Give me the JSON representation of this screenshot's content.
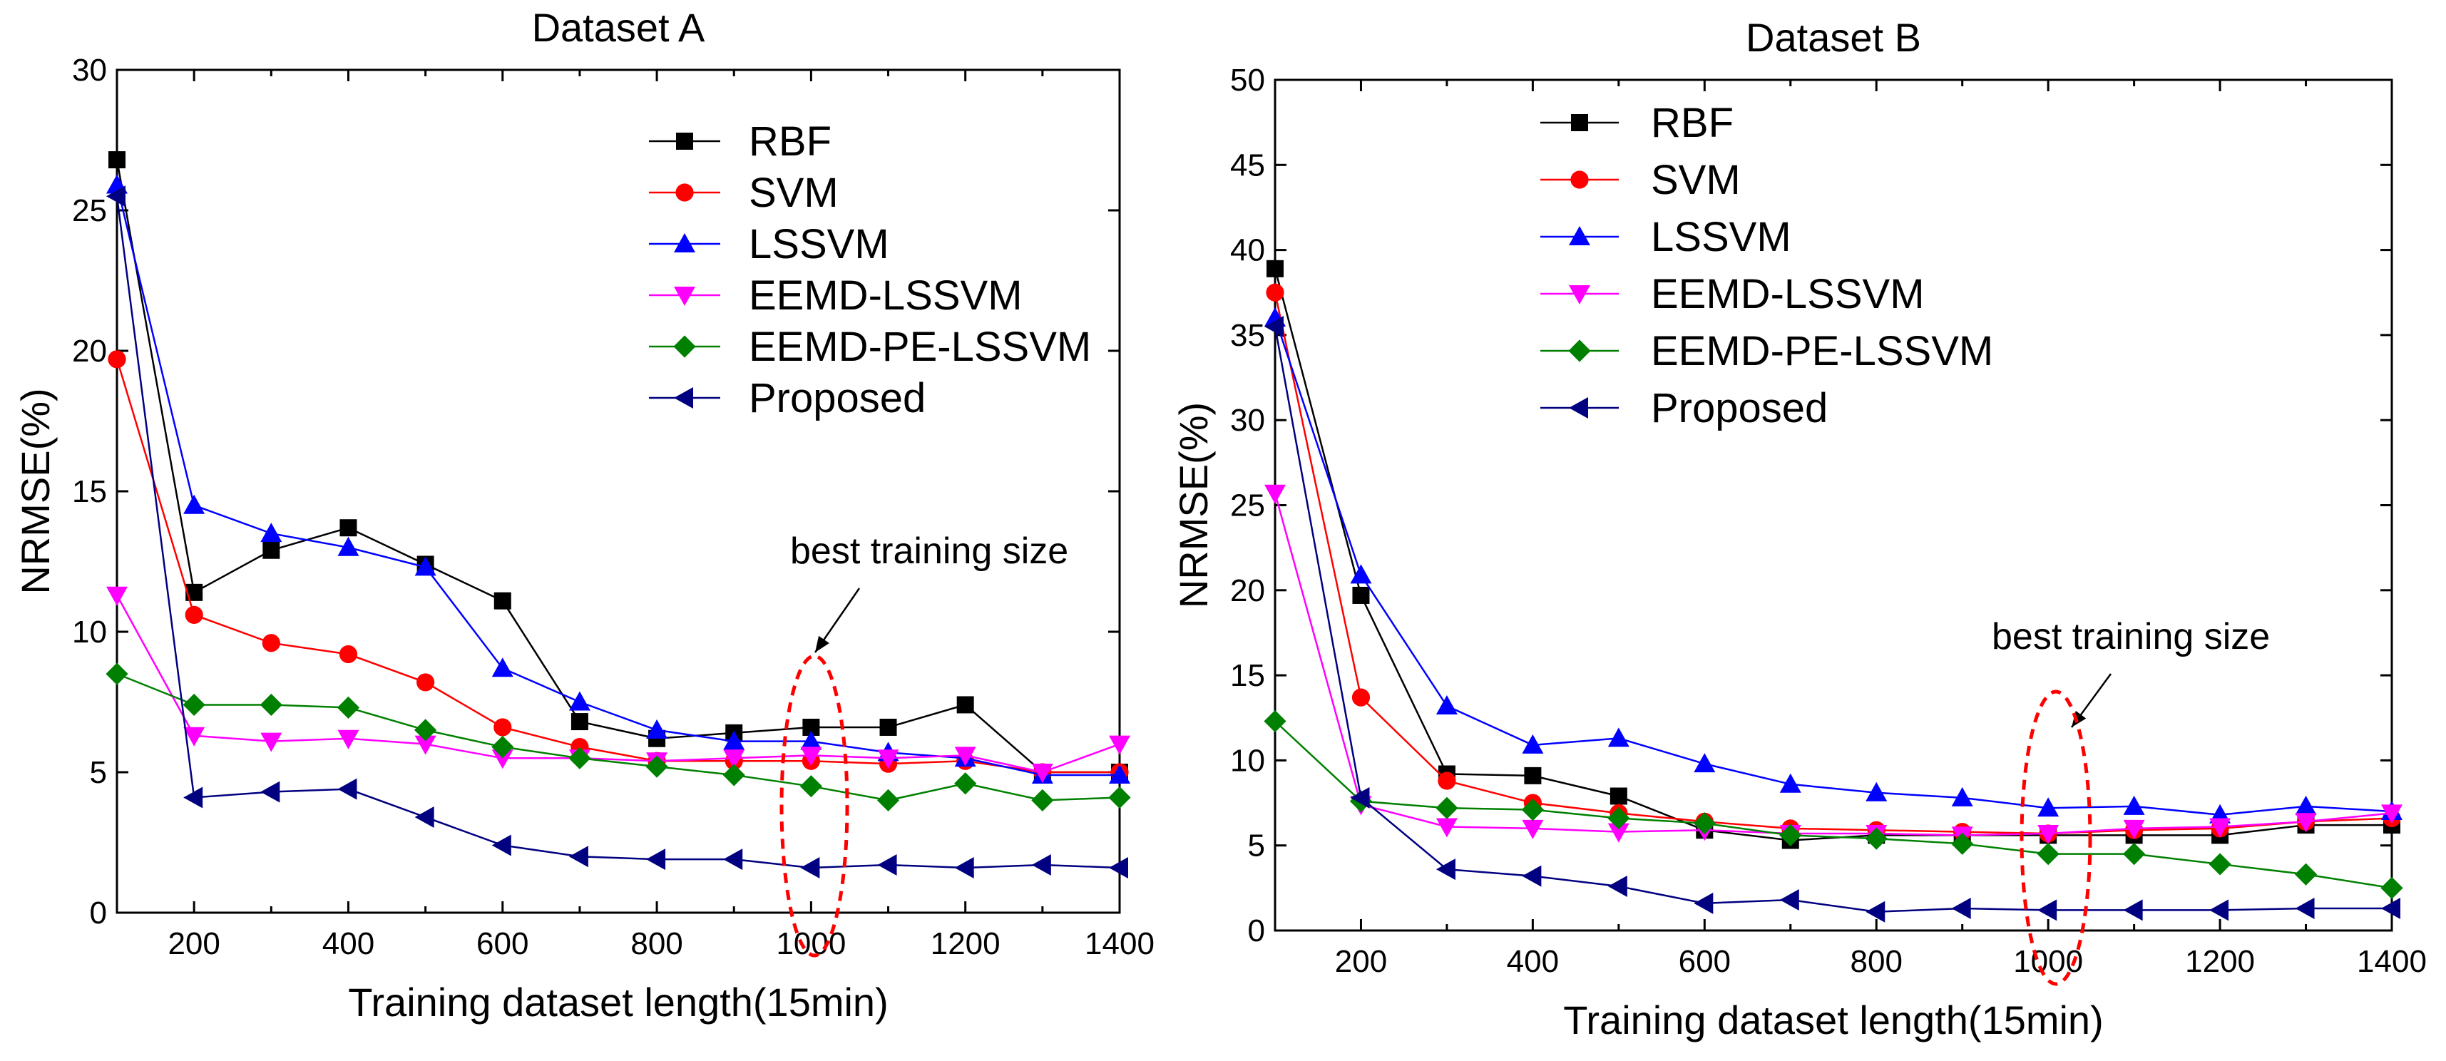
{
  "chart_data": [
    {
      "type": "line",
      "title": "Dataset A",
      "xlabel": "Training dataset length(15min)",
      "ylabel": "NRMSE(%)",
      "xlim": [
        100,
        1400
      ],
      "ylim": [
        0,
        30
      ],
      "xticks": [
        200,
        400,
        600,
        800,
        1000,
        1200,
        1400
      ],
      "yticks": [
        0,
        5,
        10,
        15,
        20,
        25,
        30
      ],
      "x": [
        100,
        200,
        300,
        400,
        500,
        600,
        700,
        800,
        900,
        1000,
        1100,
        1200,
        1300,
        1400
      ],
      "legend_position": "top-right",
      "annotation": {
        "text": "best training size",
        "x": 1000
      },
      "series": [
        {
          "name": "RBF",
          "color": "#000000",
          "marker": "square",
          "values": [
            26.8,
            11.4,
            12.9,
            13.7,
            12.4,
            11.1,
            6.8,
            6.2,
            6.4,
            6.6,
            6.6,
            7.4,
            5.0,
            5.0
          ]
        },
        {
          "name": "SVM",
          "color": "#ff0000",
          "marker": "circle",
          "values": [
            19.7,
            10.6,
            9.6,
            9.2,
            8.2,
            6.6,
            5.9,
            5.4,
            5.4,
            5.4,
            5.3,
            5.4,
            5.0,
            5.0
          ]
        },
        {
          "name": "LSSVM",
          "color": "#0000ff",
          "marker": "triangle-up",
          "values": [
            25.9,
            14.5,
            13.5,
            13.0,
            12.3,
            8.7,
            7.5,
            6.5,
            6.1,
            6.1,
            5.7,
            5.5,
            4.9,
            4.9
          ]
        },
        {
          "name": "EEMD-LSSVM",
          "color": "#ff00ff",
          "marker": "triangle-down",
          "values": [
            11.3,
            6.3,
            6.1,
            6.2,
            6.0,
            5.5,
            5.5,
            5.4,
            5.5,
            5.6,
            5.5,
            5.6,
            5.0,
            6.0
          ]
        },
        {
          "name": "EEMD-PE-LSSVM",
          "color": "#008000",
          "marker": "diamond",
          "values": [
            8.5,
            7.4,
            7.4,
            7.3,
            6.5,
            5.9,
            5.5,
            5.2,
            4.9,
            4.5,
            4.0,
            4.6,
            4.0,
            4.1
          ]
        },
        {
          "name": "Proposed",
          "color": "#000080",
          "marker": "triangle-left",
          "values": [
            25.5,
            4.1,
            4.3,
            4.4,
            3.4,
            2.4,
            2.0,
            1.9,
            1.9,
            1.6,
            1.7,
            1.6,
            1.7,
            1.6
          ]
        }
      ]
    },
    {
      "type": "line",
      "title": "Dataset B",
      "xlabel": "Training dataset length(15min)",
      "ylabel": "NRMSE(%)",
      "xlim": [
        100,
        1400
      ],
      "ylim": [
        0,
        50
      ],
      "xticks": [
        200,
        400,
        600,
        800,
        1000,
        1200,
        1400
      ],
      "yticks": [
        0,
        5,
        10,
        15,
        20,
        25,
        30,
        35,
        40,
        45,
        50
      ],
      "x": [
        100,
        200,
        300,
        400,
        500,
        600,
        700,
        800,
        900,
        1000,
        1100,
        1200,
        1300,
        1400
      ],
      "legend_position": "top-left",
      "annotation": {
        "text": "best training size",
        "x": 1000
      },
      "series": [
        {
          "name": "RBF",
          "color": "#000000",
          "marker": "square",
          "values": [
            38.9,
            19.7,
            9.2,
            9.1,
            7.9,
            5.9,
            5.3,
            5.6,
            5.6,
            5.6,
            5.6,
            5.6,
            6.2,
            6.2
          ]
        },
        {
          "name": "SVM",
          "color": "#ff0000",
          "marker": "circle",
          "values": [
            37.5,
            13.7,
            8.8,
            7.5,
            6.9,
            6.4,
            6.0,
            5.9,
            5.8,
            5.7,
            5.9,
            6.0,
            6.4,
            6.6
          ]
        },
        {
          "name": "LSSVM",
          "color": "#0000ff",
          "marker": "triangle-up",
          "values": [
            36.0,
            20.9,
            13.2,
            10.9,
            11.3,
            9.8,
            8.6,
            8.1,
            7.8,
            7.2,
            7.3,
            6.8,
            7.3,
            7.0
          ]
        },
        {
          "name": "EEMD-LSSVM",
          "color": "#ff00ff",
          "marker": "triangle-down",
          "values": [
            25.7,
            7.4,
            6.1,
            6.0,
            5.8,
            5.9,
            5.7,
            5.7,
            5.6,
            5.7,
            6.0,
            6.1,
            6.4,
            6.9
          ]
        },
        {
          "name": "EEMD-PE-LSSVM",
          "color": "#008000",
          "marker": "diamond",
          "values": [
            12.3,
            7.6,
            7.2,
            7.1,
            6.6,
            6.3,
            5.6,
            5.4,
            5.1,
            4.5,
            4.5,
            3.9,
            3.3,
            2.5
          ]
        },
        {
          "name": "Proposed",
          "color": "#000080",
          "marker": "triangle-left",
          "values": [
            35.5,
            7.8,
            3.6,
            3.2,
            2.6,
            1.6,
            1.8,
            1.1,
            1.3,
            1.2,
            1.2,
            1.2,
            1.3,
            1.3
          ]
        }
      ]
    }
  ]
}
